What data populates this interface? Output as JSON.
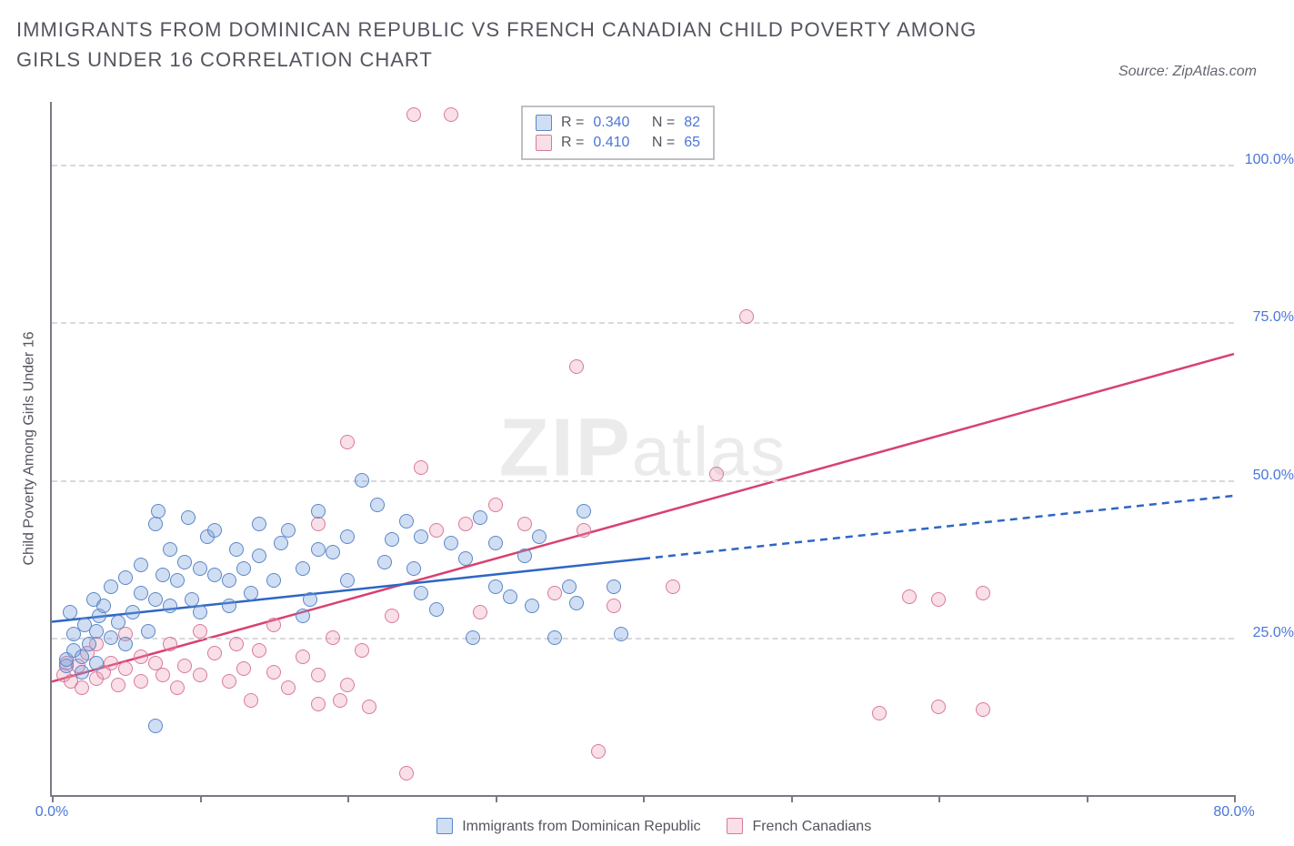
{
  "title": "IMMIGRANTS FROM DOMINICAN REPUBLIC VS FRENCH CANADIAN CHILD POVERTY AMONG GIRLS UNDER 16 CORRELATION CHART",
  "source_label": "Source: ZipAtlas.com",
  "watermark": {
    "a": "ZIP",
    "b": "atlas"
  },
  "y_axis_label": "Child Poverty Among Girls Under 16",
  "chart": {
    "type": "scatter",
    "background_color": "#ffffff",
    "axis_color": "#7a7a85",
    "grid_color": "#d8d8de",
    "tick_label_color": "#4a76d8",
    "text_color": "#555560",
    "xlim": [
      0,
      80
    ],
    "ylim": [
      0,
      110
    ],
    "y_grid": [
      {
        "value": 25,
        "label": "25.0%"
      },
      {
        "value": 50,
        "label": "50.0%"
      },
      {
        "value": 75,
        "label": "75.0%"
      },
      {
        "value": 100,
        "label": "100.0%"
      }
    ],
    "x_ticks": [
      0,
      10,
      20,
      30,
      40,
      50,
      60,
      70,
      80
    ],
    "x_labels": [
      {
        "value": 0,
        "label": "0.0%"
      },
      {
        "value": 80,
        "label": "80.0%"
      }
    ]
  },
  "series": {
    "a": {
      "name": "Immigrants from Dominican Republic",
      "color_fill": "rgba(120,160,220,0.35)",
      "color_stroke": "#5b87c8",
      "trend_color": "#2e66c4",
      "trend_width": 2.5,
      "trend_solid_x": [
        0,
        40
      ],
      "trend_dashed_x": [
        40,
        80
      ],
      "trend_y": [
        27.5,
        47.5
      ],
      "R_label": "R =",
      "R_value": "0.340",
      "N_label": "N =",
      "N_value": "82",
      "points": [
        [
          1,
          20.5
        ],
        [
          1,
          21.5
        ],
        [
          1.5,
          23
        ],
        [
          1.5,
          25.5
        ],
        [
          2,
          22
        ],
        [
          2,
          19.5
        ],
        [
          2.2,
          27
        ],
        [
          2.5,
          24
        ],
        [
          2.8,
          31
        ],
        [
          3,
          26
        ],
        [
          3,
          21
        ],
        [
          3.2,
          28.5
        ],
        [
          3.5,
          30
        ],
        [
          1.2,
          29
        ],
        [
          4,
          25
        ],
        [
          4,
          33
        ],
        [
          4.5,
          27.5
        ],
        [
          5,
          24
        ],
        [
          5,
          34.5
        ],
        [
          5.5,
          29
        ],
        [
          6,
          32
        ],
        [
          6,
          36.5
        ],
        [
          6.5,
          26
        ],
        [
          7,
          31
        ],
        [
          7,
          43
        ],
        [
          7.2,
          45
        ],
        [
          7.5,
          35
        ],
        [
          8,
          30
        ],
        [
          8,
          39
        ],
        [
          8.5,
          34
        ],
        [
          9,
          37
        ],
        [
          9.2,
          44
        ],
        [
          9.5,
          31
        ],
        [
          10,
          36
        ],
        [
          10,
          29
        ],
        [
          10.5,
          41
        ],
        [
          11,
          35
        ],
        [
          11,
          42
        ],
        [
          12,
          34
        ],
        [
          12,
          30
        ],
        [
          12.5,
          39
        ],
        [
          13,
          36
        ],
        [
          13.5,
          32
        ],
        [
          14,
          38
        ],
        [
          14,
          43
        ],
        [
          15,
          34
        ],
        [
          15.5,
          40
        ],
        [
          16,
          42
        ],
        [
          17,
          36
        ],
        [
          17.5,
          31
        ],
        [
          18,
          39
        ],
        [
          18,
          45
        ],
        [
          19,
          38.5
        ],
        [
          20,
          34
        ],
        [
          20,
          41
        ],
        [
          21,
          50
        ],
        [
          22,
          46
        ],
        [
          22.5,
          37
        ],
        [
          23,
          40.5
        ],
        [
          24,
          43.5
        ],
        [
          24.5,
          36
        ],
        [
          25,
          41
        ],
        [
          25,
          32
        ],
        [
          27,
          40
        ],
        [
          28,
          37.5
        ],
        [
          28.5,
          25
        ],
        [
          30,
          33
        ],
        [
          30,
          40
        ],
        [
          31,
          31.5
        ],
        [
          32,
          38
        ],
        [
          32.5,
          30
        ],
        [
          33,
          41
        ],
        [
          34,
          25
        ],
        [
          35,
          33
        ],
        [
          35.5,
          30.5
        ],
        [
          36,
          45
        ],
        [
          38,
          33
        ],
        [
          38.5,
          25.5
        ],
        [
          7,
          11
        ],
        [
          17,
          28.5
        ],
        [
          26,
          29.5
        ],
        [
          29,
          44
        ]
      ]
    },
    "b": {
      "name": "French Canadians",
      "color_fill": "rgba(235,150,175,0.30)",
      "color_stroke": "#d87a9a",
      "trend_color": "#d8416f",
      "trend_width": 2.5,
      "trend_solid_x": [
        0,
        80
      ],
      "trend_y": [
        18,
        70
      ],
      "R_label": "R =",
      "R_value": "0.410",
      "N_label": "N =",
      "N_value": "65",
      "points": [
        [
          0.8,
          19
        ],
        [
          1,
          21
        ],
        [
          1.3,
          18
        ],
        [
          1.8,
          20.5
        ],
        [
          2,
          17
        ],
        [
          2.4,
          22.5
        ],
        [
          3,
          18.5
        ],
        [
          3,
          24
        ],
        [
          3.5,
          19.5
        ],
        [
          4,
          21
        ],
        [
          4.5,
          17.5
        ],
        [
          5,
          20
        ],
        [
          5,
          25.5
        ],
        [
          6,
          18
        ],
        [
          6,
          22
        ],
        [
          7,
          21
        ],
        [
          7.5,
          19
        ],
        [
          8,
          24
        ],
        [
          8.5,
          17
        ],
        [
          9,
          20.5
        ],
        [
          10,
          19
        ],
        [
          10,
          26
        ],
        [
          11,
          22.5
        ],
        [
          12,
          18
        ],
        [
          12.5,
          24
        ],
        [
          13,
          20
        ],
        [
          13.5,
          15
        ],
        [
          14,
          23
        ],
        [
          15,
          19.5
        ],
        [
          15,
          27
        ],
        [
          16,
          17
        ],
        [
          17,
          22
        ],
        [
          18,
          19
        ],
        [
          18,
          14.5
        ],
        [
          19.5,
          15
        ],
        [
          19,
          25
        ],
        [
          20,
          17.5
        ],
        [
          21,
          23
        ],
        [
          21.5,
          14
        ],
        [
          23,
          28.5
        ],
        [
          18,
          43
        ],
        [
          20,
          56
        ],
        [
          24,
          3.5
        ],
        [
          24.5,
          108
        ],
        [
          25,
          52
        ],
        [
          26,
          42
        ],
        [
          27,
          108
        ],
        [
          28,
          43
        ],
        [
          29,
          29
        ],
        [
          30,
          46
        ],
        [
          32,
          43
        ],
        [
          34,
          32
        ],
        [
          36,
          42
        ],
        [
          35.5,
          68
        ],
        [
          37,
          7
        ],
        [
          38,
          30
        ],
        [
          42,
          33
        ],
        [
          45,
          51
        ],
        [
          47,
          76
        ],
        [
          58,
          31.5
        ],
        [
          60,
          31
        ],
        [
          63,
          32
        ],
        [
          56,
          13
        ],
        [
          60,
          14
        ],
        [
          63,
          13.5
        ]
      ]
    }
  },
  "legend_bottom": {
    "a_label": "Immigrants from Dominican Republic",
    "b_label": "French Canadians"
  }
}
